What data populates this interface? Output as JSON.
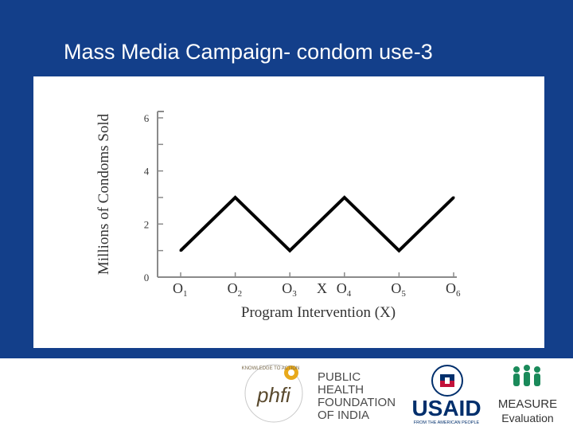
{
  "slide": {
    "title": "Mass Media Campaign- condom use-3"
  },
  "chart_data": {
    "type": "line",
    "ylabel": "Millions of Condoms Sold",
    "xlabel": "Program Intervention (X)",
    "ylim": [
      0,
      6
    ],
    "yticks": [
      0,
      2,
      4,
      6
    ],
    "categories": [
      {
        "label": "O",
        "sub": "1"
      },
      {
        "label": "O",
        "sub": "2"
      },
      {
        "label": "O",
        "sub": "3"
      },
      {
        "label": "O",
        "sub": "4"
      },
      {
        "label": "O",
        "sub": "5"
      },
      {
        "label": "O",
        "sub": "6"
      }
    ],
    "intervention_marker": {
      "label": "X",
      "between": [
        2,
        3
      ]
    },
    "series": [
      {
        "values": [
          1,
          3,
          1,
          3,
          1,
          3
        ]
      }
    ],
    "grid": false,
    "line_color": "#000000"
  },
  "logos": {
    "phfi": {
      "mark_text": "phfi",
      "ring_text": "KNOWLEDGE TO ACTION",
      "name_lines": [
        "PUBLIC",
        "HEALTH",
        "FOUNDATION",
        "OF INDIA"
      ]
    },
    "usaid": {
      "wordmark": "USAID",
      "tagline": "FROM THE AMERICAN PEOPLE",
      "brand_color": "#002f6c",
      "accent_color": "#c2113a"
    },
    "measure": {
      "wordmark": "MEASURE",
      "subtitle": "Evaluation",
      "figure_color": "#1a8a5a"
    }
  }
}
